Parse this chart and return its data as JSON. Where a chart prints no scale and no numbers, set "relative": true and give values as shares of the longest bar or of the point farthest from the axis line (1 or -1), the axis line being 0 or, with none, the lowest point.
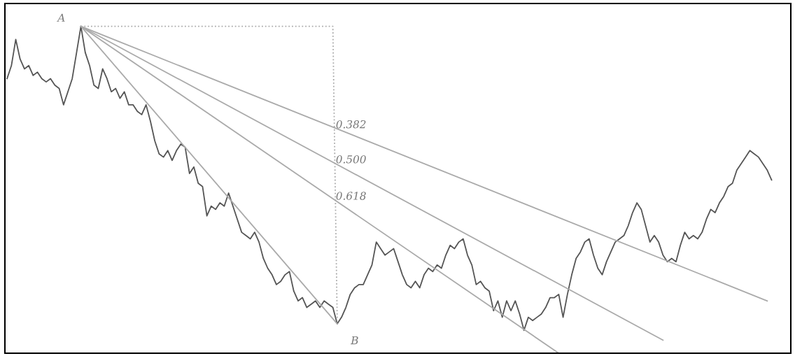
{
  "chart_data": {
    "type": "line",
    "relative": true,
    "tick_labels": false,
    "marker": "none",
    "annotations": [
      "A",
      "0.382",
      "0.500",
      "0.618",
      "B"
    ],
    "categories": [
      null,
      null,
      null,
      null,
      null,
      null,
      null,
      null,
      null,
      null,
      null,
      null,
      null,
      null,
      null,
      null,
      null,
      null,
      null,
      null,
      null,
      null,
      null,
      null,
      null,
      null,
      null,
      null,
      null,
      null,
      null,
      null,
      null,
      null,
      null,
      null,
      null,
      null,
      null,
      null,
      null,
      null,
      null,
      null,
      null,
      null,
      null,
      null,
      null,
      null,
      null,
      null,
      null,
      null,
      null,
      null,
      null,
      null,
      null,
      null,
      null,
      null,
      null,
      null,
      null,
      null,
      null,
      null,
      null,
      null,
      null,
      null,
      null,
      null,
      null,
      null,
      null,
      null,
      null,
      null,
      null,
      null,
      null,
      null,
      null,
      null,
      null,
      null,
      null,
      null,
      null,
      null,
      null,
      null,
      null,
      null,
      null,
      null,
      null,
      null,
      null,
      null,
      null,
      null,
      null,
      null,
      null,
      null,
      null,
      null,
      null,
      null,
      null,
      null,
      null,
      null,
      null,
      null,
      null,
      null,
      null,
      null,
      null,
      null,
      null,
      null,
      null,
      null,
      null,
      null,
      null,
      null,
      null,
      null,
      null,
      null,
      null,
      null,
      null,
      null,
      null,
      null,
      null,
      null,
      null,
      null,
      null,
      null,
      null,
      null,
      null,
      null,
      null,
      null,
      null,
      null,
      null,
      null,
      null,
      null,
      null,
      null,
      null,
      null,
      null,
      null,
      null,
      null,
      null,
      null,
      null,
      null,
      null,
      null,
      null,
      null,
      null
    ],
    "series": [
      {
        "color": "#555555",
        "line_style": "solid",
        "values": [
          0.84,
          0.88,
          0.96,
          0.9,
          0.87,
          0.88,
          0.85,
          0.86,
          0.84,
          0.83,
          0.84,
          0.82,
          0.81,
          0.76,
          0.8,
          0.84,
          0.92,
          1.0,
          0.92,
          0.88,
          0.82,
          0.81,
          0.87,
          0.84,
          0.8,
          0.81,
          0.78,
          0.8,
          0.76,
          0.76,
          0.74,
          0.73,
          0.76,
          0.71,
          0.65,
          0.61,
          0.6,
          0.62,
          0.59,
          0.62,
          0.64,
          0.63,
          0.55,
          0.57,
          0.52,
          0.51,
          0.42,
          0.45,
          0.44,
          0.46,
          0.45,
          0.49,
          0.45,
          0.41,
          0.37,
          0.36,
          0.35,
          0.37,
          0.34,
          0.29,
          0.26,
          0.24,
          0.21,
          0.22,
          0.24,
          0.25,
          0.19,
          0.16,
          0.17,
          0.14,
          0.15,
          0.16,
          0.14,
          0.16,
          0.15,
          0.14,
          0.09,
          0.11,
          0.14,
          0.18,
          0.2,
          0.21,
          0.21,
          0.24,
          0.27,
          0.34,
          0.32,
          0.3,
          0.31,
          0.32,
          0.28,
          0.24,
          0.21,
          0.2,
          0.22,
          0.2,
          0.24,
          0.26,
          0.25,
          0.27,
          0.26,
          0.3,
          0.33,
          0.32,
          0.34,
          0.35,
          0.3,
          0.27,
          0.21,
          0.22,
          0.2,
          0.19,
          0.13,
          0.16,
          0.11,
          0.16,
          0.13,
          0.16,
          0.12,
          0.07,
          0.11,
          0.1,
          0.11,
          0.12,
          0.14,
          0.17,
          0.17,
          0.18,
          0.11,
          0.18,
          0.24,
          0.29,
          0.31,
          0.34,
          0.35,
          0.3,
          0.26,
          0.24,
          0.28,
          0.31,
          0.34,
          0.35,
          0.36,
          0.39,
          0.43,
          0.46,
          0.44,
          0.39,
          0.34,
          0.36,
          0.34,
          0.3,
          0.28,
          0.29,
          0.28,
          0.33,
          0.37,
          0.35,
          0.36,
          0.35,
          0.37,
          0.41,
          0.44,
          0.43,
          0.46,
          0.48,
          0.51,
          0.52,
          0.56,
          0.58,
          0.6,
          0.62,
          0.61,
          0.6,
          0.58,
          0.56,
          0.53
        ]
      },
      {
        "color": "#aaaaaa",
        "line_style": "solid",
        "values": [
          null,
          null,
          null,
          null,
          null,
          null,
          null,
          null,
          null,
          null,
          null,
          null,
          null,
          null,
          null,
          null,
          null,
          1.0,
          null,
          null,
          null,
          null,
          null,
          null,
          null,
          null,
          null,
          null,
          null,
          null,
          null,
          null,
          null,
          null,
          null,
          null,
          null,
          null,
          null,
          null,
          null,
          null,
          null,
          null,
          null,
          null,
          null,
          null,
          null,
          null,
          null,
          null,
          null,
          null,
          null,
          null,
          null,
          null,
          null,
          null,
          null,
          null,
          null,
          null,
          null,
          null,
          null,
          null,
          null,
          null,
          null,
          null,
          null,
          null,
          null,
          null,
          null,
          null,
          null,
          null,
          null,
          null,
          null,
          null,
          null,
          null,
          null,
          null,
          null,
          null,
          null,
          null,
          null,
          null,
          null,
          null,
          null,
          null,
          null,
          null,
          null,
          null,
          null,
          null,
          null,
          null,
          null,
          null,
          null,
          null,
          null,
          null,
          null,
          null,
          null,
          null,
          null,
          null,
          null,
          null,
          null,
          null,
          null,
          null,
          null,
          null,
          null,
          null,
          null,
          null,
          null,
          null,
          null,
          null,
          null,
          null,
          null,
          null,
          null,
          null,
          null,
          null,
          null,
          null,
          null,
          null,
          null,
          null,
          null,
          null,
          null,
          null,
          null,
          null,
          null,
          null,
          null,
          null,
          null,
          null,
          null,
          null,
          null,
          null,
          null,
          null,
          null,
          null,
          null,
          null,
          null,
          null,
          null,
          null,
          null,
          0.16,
          null
        ]
      },
      {
        "color": "#aaaaaa",
        "line_style": "solid",
        "values": [
          null,
          null,
          null,
          null,
          null,
          null,
          null,
          null,
          null,
          null,
          null,
          null,
          null,
          null,
          null,
          null,
          null,
          1.0,
          null,
          null,
          null,
          null,
          null,
          null,
          null,
          null,
          null,
          null,
          null,
          null,
          null,
          null,
          null,
          null,
          null,
          null,
          null,
          null,
          null,
          null,
          null,
          null,
          null,
          null,
          null,
          null,
          null,
          null,
          null,
          null,
          null,
          null,
          null,
          null,
          null,
          null,
          null,
          null,
          null,
          null,
          null,
          null,
          null,
          null,
          null,
          null,
          null,
          null,
          null,
          null,
          null,
          null,
          null,
          null,
          null,
          null,
          null,
          null,
          null,
          null,
          null,
          null,
          null,
          null,
          null,
          null,
          null,
          null,
          null,
          null,
          null,
          null,
          null,
          null,
          null,
          null,
          null,
          null,
          null,
          null,
          null,
          null,
          null,
          null,
          null,
          null,
          null,
          null,
          null,
          null,
          null,
          null,
          null,
          null,
          null,
          null,
          null,
          null,
          null,
          null,
          null,
          null,
          null,
          null,
          null,
          null,
          null,
          null,
          null,
          null,
          null,
          null,
          null,
          null,
          null,
          null,
          null,
          null,
          null,
          null,
          null,
          null,
          null,
          null,
          null,
          null,
          null,
          null,
          null,
          null,
          null,
          0.04,
          null,
          null,
          null,
          null,
          null,
          null,
          null,
          null,
          null,
          null,
          null,
          null,
          null,
          null,
          null,
          null,
          null,
          null,
          null,
          null,
          null,
          null,
          null,
          null,
          null
        ]
      },
      {
        "color": "#aaaaaa",
        "line_style": "solid",
        "values": [
          null,
          null,
          null,
          null,
          null,
          null,
          null,
          null,
          null,
          null,
          null,
          null,
          null,
          null,
          null,
          null,
          null,
          1.0,
          null,
          null,
          null,
          null,
          null,
          null,
          null,
          null,
          null,
          null,
          null,
          null,
          null,
          null,
          null,
          null,
          null,
          null,
          null,
          null,
          null,
          null,
          null,
          null,
          null,
          null,
          null,
          null,
          null,
          null,
          null,
          null,
          null,
          null,
          null,
          null,
          null,
          null,
          null,
          null,
          null,
          null,
          null,
          null,
          null,
          null,
          null,
          null,
          null,
          null,
          null,
          null,
          null,
          null,
          null,
          null,
          null,
          null,
          null,
          null,
          null,
          null,
          null,
          null,
          null,
          null,
          null,
          null,
          null,
          null,
          null,
          null,
          null,
          null,
          null,
          null,
          null,
          null,
          null,
          null,
          null,
          null,
          null,
          null,
          null,
          null,
          null,
          null,
          null,
          null,
          null,
          null,
          null,
          null,
          null,
          null,
          null,
          null,
          null,
          null,
          null,
          null,
          null,
          null,
          null,
          null,
          null,
          null,
          null,
          0.0,
          null,
          null,
          null,
          null,
          null,
          null,
          null,
          null,
          null,
          null,
          null,
          null,
          null,
          null,
          null,
          null,
          null,
          null,
          null,
          null,
          null,
          null,
          null,
          null,
          null,
          null,
          null,
          null,
          null,
          null,
          null,
          null,
          null,
          null,
          null,
          null,
          null,
          null,
          null,
          null,
          null,
          null,
          null,
          null,
          null,
          null,
          null,
          null,
          null
        ]
      },
      {
        "color": "#aaaaaa",
        "line_style": "solid",
        "values": [
          null,
          null,
          null,
          null,
          null,
          null,
          null,
          null,
          null,
          null,
          null,
          null,
          null,
          null,
          null,
          null,
          null,
          1.0,
          null,
          null,
          null,
          null,
          null,
          null,
          null,
          null,
          null,
          null,
          null,
          null,
          null,
          null,
          null,
          null,
          null,
          null,
          null,
          null,
          null,
          null,
          null,
          null,
          null,
          null,
          null,
          null,
          null,
          null,
          null,
          null,
          null,
          null,
          null,
          null,
          null,
          null,
          null,
          null,
          null,
          null,
          null,
          null,
          null,
          null,
          null,
          null,
          null,
          null,
          null,
          null,
          null,
          null,
          null,
          null,
          null,
          null,
          0.09,
          null,
          null,
          null,
          null,
          null,
          null,
          null,
          null,
          null,
          null,
          null,
          null,
          null,
          null,
          null,
          null,
          null,
          null,
          null,
          null,
          null,
          null,
          null,
          null,
          null,
          null,
          null,
          null,
          null,
          null,
          null,
          null,
          null,
          null,
          null,
          null,
          null,
          null,
          null,
          null,
          null,
          null,
          null,
          null,
          null,
          null,
          null,
          null,
          null,
          null,
          null,
          null,
          null,
          null,
          null,
          null,
          null,
          null,
          null,
          null,
          null,
          null,
          null,
          null,
          null,
          null,
          null,
          null,
          null,
          null,
          null,
          null,
          null,
          null,
          null,
          null,
          null,
          null,
          null,
          null,
          null,
          null,
          null,
          null,
          null,
          null,
          null,
          null,
          null,
          null,
          null,
          null,
          null,
          null,
          null,
          null,
          null,
          null,
          null,
          null
        ]
      },
      {
        "color": "#aaaaaa",
        "line_style": "dotted",
        "values": [
          null,
          null,
          null,
          null,
          null,
          null,
          null,
          null,
          null,
          null,
          null,
          null,
          null,
          null,
          null,
          null,
          null,
          1.0,
          null,
          null,
          null,
          null,
          null,
          null,
          null,
          null,
          null,
          null,
          null,
          null,
          null,
          null,
          null,
          null,
          null,
          null,
          null,
          null,
          null,
          null,
          null,
          null,
          null,
          null,
          null,
          null,
          null,
          null,
          null,
          null,
          null,
          null,
          null,
          null,
          null,
          null,
          null,
          null,
          null,
          null,
          null,
          null,
          null,
          null,
          null,
          null,
          null,
          null,
          null,
          null,
          null,
          null,
          null,
          null,
          null,
          1.0,
          0.1,
          null,
          null,
          null,
          null,
          null,
          null,
          null,
          null,
          null,
          null,
          null,
          null,
          null,
          null,
          null,
          null,
          null,
          null,
          null,
          null,
          null,
          null,
          null,
          null,
          null,
          null,
          null,
          null,
          null,
          null,
          null,
          null,
          null,
          null,
          null,
          null,
          null,
          null,
          null,
          null,
          null,
          null,
          null,
          null,
          null,
          null,
          null,
          null,
          null,
          null,
          null,
          null,
          null,
          null,
          null,
          null,
          null,
          null,
          null,
          null,
          null,
          null,
          null,
          null,
          null,
          null,
          null,
          null,
          null,
          null,
          null,
          null,
          null,
          null,
          null,
          null,
          null,
          null,
          null,
          null,
          null,
          null,
          null,
          null,
          null,
          null,
          null,
          null,
          null,
          null,
          null,
          null,
          null,
          null,
          null,
          null,
          null,
          null,
          null,
          null
        ]
      }
    ]
  }
}
